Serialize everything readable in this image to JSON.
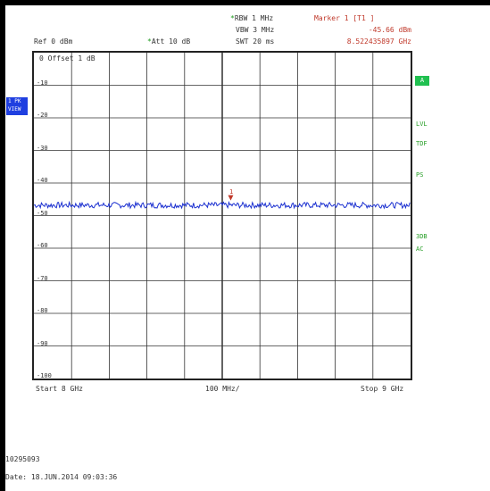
{
  "header": {
    "rbw": "RBW 1 MHz",
    "vbw": "VBW 3 MHz",
    "swt": "SWT 20 ms",
    "ref": "Ref  0 dBm",
    "att": "Att  10 dB",
    "marker_title": "Marker 1 [T1 ]",
    "marker_level": "-45.66 dBm",
    "marker_freq": "8.522435897 GHz"
  },
  "grid": {
    "offset_label": "0  Offset  1 dB",
    "y_labels": [
      "-10",
      "-20",
      "-30",
      "-40",
      "-50",
      "-60",
      "-70",
      "-80",
      "-90",
      "-100"
    ],
    "marker_label": "1"
  },
  "footer_axis": {
    "start": "Start  8 GHz",
    "span": "100 MHz/",
    "stop": "Stop  9 GHz"
  },
  "side": {
    "trace_badge": "A",
    "lvl": "LVL",
    "tdf": "TDF",
    "ps": "PS",
    "db3": "3DB",
    "ac": "AC",
    "blue_line1": "1 PK",
    "blue_line2": "VIEW"
  },
  "bottom": {
    "id": "10295093",
    "date": "Date: 18.JUN.2014  09:03:36"
  },
  "chart_data": {
    "type": "line",
    "x_start_ghz": 8.0,
    "x_end_ghz": 9.0,
    "ylim": [
      -100,
      0
    ],
    "series": [
      {
        "values_dbm_approx": -46.8
      }
    ],
    "marker": {
      "x_ghz": 8.522435897,
      "y_dbm": -45.66
    }
  },
  "colors": {
    "trace": "#1a2fd0",
    "marker": "#c0392b",
    "side_green": "#2aa02a"
  }
}
